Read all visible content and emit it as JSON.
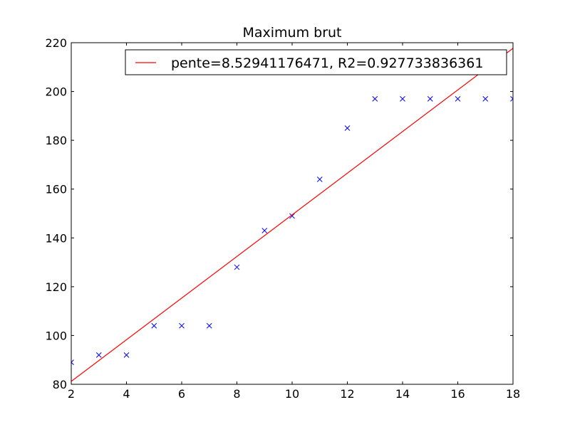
{
  "chart_data": {
    "type": "scatter",
    "title": "Maximum brut",
    "xlabel": "",
    "ylabel": "",
    "xlim": [
      2,
      18
    ],
    "ylim": [
      80,
      220
    ],
    "xticks": [
      2,
      4,
      6,
      8,
      10,
      12,
      14,
      16,
      18
    ],
    "yticks": [
      80,
      100,
      120,
      140,
      160,
      180,
      200,
      220
    ],
    "grid": false,
    "legend_position": "top-right",
    "series": [
      {
        "type": "scatter",
        "marker": "x",
        "color": "#0000ff",
        "x": [
          2,
          3,
          4,
          5,
          6,
          7,
          8,
          9,
          10,
          11,
          12,
          13,
          14,
          15,
          16,
          17,
          18
        ],
        "y": [
          89,
          92,
          92,
          104,
          104,
          104,
          128,
          143,
          149,
          164,
          185,
          197,
          197,
          197,
          197,
          197,
          197
        ]
      },
      {
        "type": "line",
        "name": "pente=8.52941176471, R2=0.927733836361",
        "color": "#ff0000",
        "x": [
          2,
          18
        ],
        "y": [
          81.2,
          217.7
        ]
      }
    ]
  }
}
